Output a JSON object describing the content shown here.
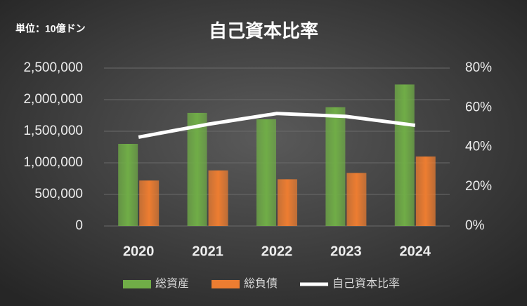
{
  "chart_data": {
    "type": "combo",
    "title": "自己資本比率",
    "unit_label": "単位：10億ドン",
    "categories": [
      "2020",
      "2021",
      "2022",
      "2023",
      "2024"
    ],
    "series": [
      {
        "name": "総資産",
        "type": "bar",
        "color": "#70ad47",
        "values": [
          1300000,
          1790000,
          1690000,
          1880000,
          2240000
        ]
      },
      {
        "name": "総負債",
        "type": "bar",
        "color": "#ed7d31",
        "values": [
          720000,
          880000,
          740000,
          840000,
          1100000
        ]
      },
      {
        "name": "自己資本比率",
        "type": "line",
        "axis": "y2",
        "color": "#ffffff",
        "values": [
          45,
          51.5,
          57,
          55.5,
          51
        ]
      }
    ],
    "ylim": [
      0,
      2500000
    ],
    "yticks": [
      0,
      {
        "value": 500000,
        "label": "500,000"
      },
      {
        "value": 1000000,
        "label": "1,000,000"
      },
      {
        "value": 1500000,
        "label": "1,500,000"
      },
      {
        "value": 2000000,
        "label": "2,000,000"
      },
      {
        "value": 2500000,
        "label": "2,500,000"
      }
    ],
    "y2lim": [
      0,
      80
    ],
    "y2ticks": [
      {
        "value": 0,
        "label": "0%"
      },
      {
        "value": 20,
        "label": "20%"
      },
      {
        "value": 40,
        "label": "40%"
      },
      {
        "value": 60,
        "label": "60%"
      },
      {
        "value": 80,
        "label": "80%"
      }
    ],
    "grid": true,
    "legend": "bottom"
  }
}
